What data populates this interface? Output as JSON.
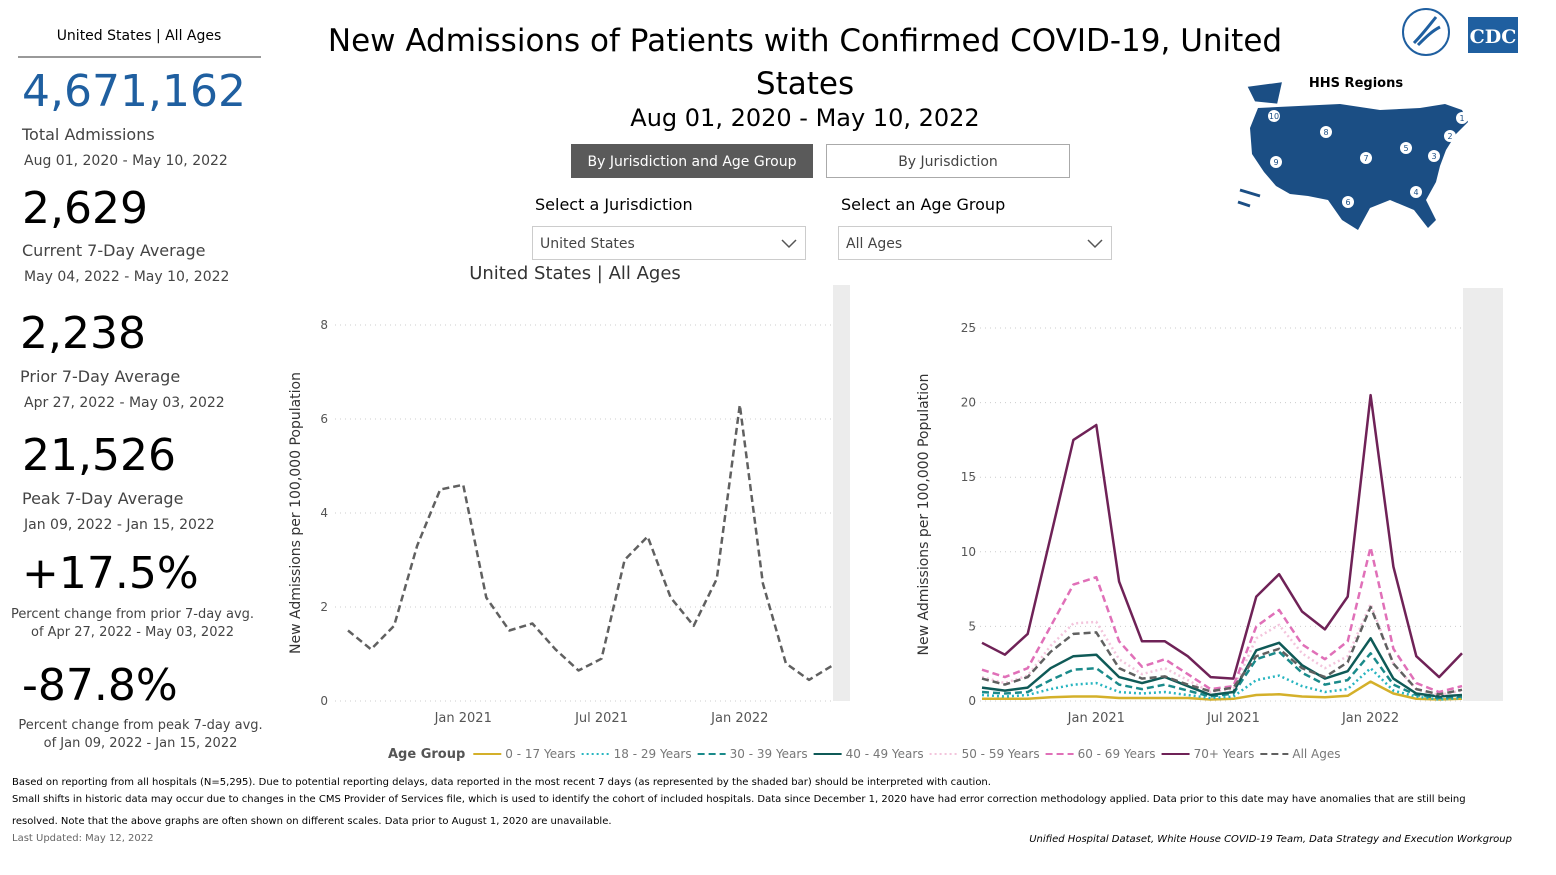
{
  "sidebar": {
    "heading": "United States | All Ages",
    "stats": [
      {
        "value": "4,671,162",
        "label": "Total Admissions",
        "period": "Aug 01, 2020 - May 10, 2022"
      },
      {
        "value": "2,629",
        "label": "Current 7-Day Average",
        "period": "May 04, 2022 - May 10, 2022"
      },
      {
        "value": "2,238",
        "label": "Prior 7-Day Average",
        "period": "Apr 27, 2022 - May 03, 2022"
      },
      {
        "value": "21,526",
        "label": "Peak 7-Day Average",
        "period": "Jan 09, 2022 - Jan 15, 2022"
      },
      {
        "value": "+17.5%",
        "label": "Percent change from prior 7-day avg. of Apr 27, 2022 - May 03, 2022"
      },
      {
        "value": "-87.8%",
        "label": "Percent change from peak 7-day avg. of Jan 09, 2022 - Jan 15, 2022"
      }
    ]
  },
  "header": {
    "title": "New Admissions of Patients with Confirmed COVID-19, United States",
    "date_range": "Aug 01, 2020 - May 10, 2022"
  },
  "controls": {
    "tabs": [
      "By Jurisdiction and Age Group",
      "By Jurisdiction"
    ],
    "selects": [
      {
        "label": "Select a Jurisdiction",
        "value": "United States"
      },
      {
        "label": "Select an Age Group",
        "value": "All Ages"
      }
    ]
  },
  "map": {
    "title": "HHS Regions",
    "regions": [
      "1",
      "2",
      "3",
      "4",
      "5",
      "6",
      "7",
      "8",
      "9",
      "10"
    ],
    "logo": "CDC"
  },
  "chart_data": [
    {
      "type": "line",
      "title": "United States | All Ages",
      "y_label": "New Admissions per 100,000 Population",
      "x": [
        "2020-08",
        "2020-09",
        "2020-10",
        "2020-11",
        "2020-12",
        "2021-01",
        "2021-02",
        "2021-03",
        "2021-04",
        "2021-05",
        "2021-06",
        "2021-07",
        "2021-08",
        "2021-09",
        "2021-10",
        "2021-11",
        "2021-12",
        "2022-01",
        "2022-02",
        "2022-03",
        "2022-04",
        "2022-05"
      ],
      "values": [
        1.5,
        1.1,
        1.6,
        3.3,
        4.5,
        4.6,
        2.2,
        1.5,
        1.65,
        1.1,
        0.65,
        0.9,
        3.0,
        3.5,
        2.2,
        1.6,
        2.6,
        6.3,
        2.5,
        0.8,
        0.45,
        0.75
      ],
      "color": "#606060",
      "dash": "dashed",
      "xlim": [
        "2020-08",
        "2022-05"
      ],
      "xticks": [
        {
          "value": "2021-01",
          "label": "Jan 2021"
        },
        {
          "value": "2021-07",
          "label": "Jul 2021"
        },
        {
          "value": "2022-01",
          "label": "Jan 2022"
        }
      ],
      "ylim": [
        0,
        8
      ],
      "yticks": [
        0,
        2,
        4,
        6,
        8
      ],
      "grid": true
    },
    {
      "type": "line",
      "y_label": "New Admissions per 100,000 Population",
      "legend_title": "Age Group",
      "x": [
        "2020-08",
        "2020-09",
        "2020-10",
        "2020-11",
        "2020-12",
        "2021-01",
        "2021-02",
        "2021-03",
        "2021-04",
        "2021-05",
        "2021-06",
        "2021-07",
        "2021-08",
        "2021-09",
        "2021-10",
        "2021-11",
        "2021-12",
        "2022-01",
        "2022-02",
        "2022-03",
        "2022-04",
        "2022-05"
      ],
      "series": [
        {
          "name": "0 - 17 Years",
          "color": "#d4b02a",
          "dash": "solid",
          "values": [
            0.15,
            0.15,
            0.15,
            0.25,
            0.3,
            0.3,
            0.2,
            0.2,
            0.2,
            0.2,
            0.1,
            0.15,
            0.4,
            0.45,
            0.3,
            0.25,
            0.35,
            1.3,
            0.5,
            0.15,
            0.1,
            0.15
          ]
        },
        {
          "name": "18 - 29 Years",
          "color": "#27b5c0",
          "dash": "dotted",
          "values": [
            0.4,
            0.3,
            0.4,
            0.8,
            1.1,
            1.2,
            0.6,
            0.5,
            0.6,
            0.4,
            0.2,
            0.3,
            1.4,
            1.7,
            1.0,
            0.6,
            0.8,
            2.2,
            0.7,
            0.3,
            0.1,
            0.2
          ]
        },
        {
          "name": "30 - 39 Years",
          "color": "#1a8a8a",
          "dash": "dashed",
          "values": [
            0.6,
            0.5,
            0.6,
            1.4,
            2.1,
            2.2,
            1.1,
            0.8,
            1.1,
            0.7,
            0.3,
            0.5,
            2.8,
            3.3,
            1.9,
            1.1,
            1.4,
            3.2,
            1.1,
            0.4,
            0.2,
            0.3
          ]
        },
        {
          "name": "40 - 49 Years",
          "color": "#0f5a57",
          "dash": "solid",
          "values": [
            0.9,
            0.7,
            0.9,
            2.2,
            3.0,
            3.1,
            1.6,
            1.2,
            1.6,
            1.0,
            0.4,
            0.6,
            3.4,
            3.9,
            2.4,
            1.5,
            2.0,
            4.2,
            1.5,
            0.5,
            0.3,
            0.4
          ]
        },
        {
          "name": "50 - 59 Years",
          "color": "#f3c4dc",
          "dash": "dotted",
          "values": [
            1.6,
            1.2,
            1.7,
            3.7,
            5.2,
            5.3,
            2.8,
            1.8,
            2.2,
            1.4,
            0.6,
            0.8,
            4.2,
            5.1,
            3.2,
            2.2,
            3.0,
            6.5,
            2.5,
            0.8,
            0.4,
            0.7
          ]
        },
        {
          "name": "60 - 69 Years",
          "color": "#e070b8",
          "dash": "dashed",
          "values": [
            2.1,
            1.6,
            2.2,
            5.0,
            7.8,
            8.3,
            4.0,
            2.3,
            2.8,
            1.8,
            0.8,
            1.0,
            5.0,
            6.1,
            3.8,
            2.8,
            4.0,
            10.3,
            3.5,
            1.2,
            0.6,
            1.0
          ]
        },
        {
          "name": "70+ Years",
          "color": "#6f2257",
          "dash": "solid",
          "values": [
            3.9,
            3.1,
            4.5,
            11,
            17.5,
            18.5,
            8,
            4,
            4,
            3,
            1.6,
            1.5,
            7,
            8.5,
            6,
            4.8,
            7,
            20.5,
            9,
            3,
            1.6,
            3.2
          ]
        },
        {
          "name": "All Ages",
          "color": "#606060",
          "dash": "dashed",
          "values": [
            1.5,
            1.1,
            1.6,
            3.3,
            4.5,
            4.6,
            2.2,
            1.5,
            1.65,
            1.1,
            0.65,
            0.9,
            3.0,
            3.5,
            2.2,
            1.6,
            2.6,
            6.3,
            2.5,
            0.8,
            0.45,
            0.75
          ]
        }
      ],
      "xlim": [
        "2020-08",
        "2022-05"
      ],
      "xticks": [
        {
          "value": "2021-01",
          "label": "Jan 2021"
        },
        {
          "value": "2021-07",
          "label": "Jul 2021"
        },
        {
          "value": "2022-01",
          "label": "Jan 2022"
        }
      ],
      "ylim": [
        0,
        25
      ],
      "yticks": [
        0,
        5,
        10,
        15,
        20,
        25
      ],
      "grid": true
    }
  ],
  "footer": {
    "notes": [
      "Based on reporting from all hospitals (N=5,295). Due to potential reporting delays, data reported in the most recent 7 days (as represented by the shaded bar) should be interpreted with caution.",
      "Small shifts in historic data may occur due to changes in the CMS Provider of Services file, which is used to identify the cohort of included hospitals. Data since December 1, 2020 have had error correction methodology applied. Data prior to this date may have anomalies that are still being",
      "resolved. Note that the above graphs are often shown on different scales. Data prior to August 1, 2020 are unavailable."
    ],
    "updated": "Last Updated: May 12, 2022",
    "source": "Unified Hospital Dataset, White House COVID-19 Team, Data Strategy and Execution Workgroup"
  }
}
